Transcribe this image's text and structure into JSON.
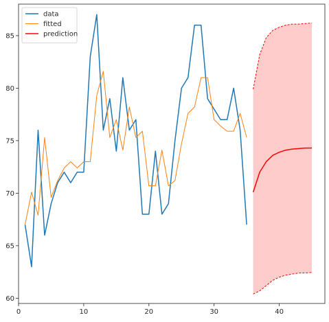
{
  "chart_data": {
    "type": "line",
    "xlim": [
      0,
      47
    ],
    "ylim": [
      59.5,
      88
    ],
    "xticks": [
      0,
      10,
      20,
      30,
      40
    ],
    "yticks": [
      60,
      65,
      70,
      75,
      80,
      85
    ],
    "grid": false,
    "legend_position": "top-left",
    "series": [
      {
        "name": "data",
        "color": "#1f77b4",
        "x": [
          1,
          2,
          3,
          4,
          5,
          6,
          7,
          8,
          9,
          10,
          11,
          12,
          13,
          14,
          15,
          16,
          17,
          18,
          19,
          20,
          21,
          22,
          23,
          24,
          25,
          26,
          27,
          28,
          29,
          30,
          31,
          32,
          33,
          34,
          35
        ],
        "y": [
          67,
          63,
          76,
          66,
          69,
          71,
          72,
          71,
          72,
          72,
          83,
          87,
          76,
          79,
          74,
          81,
          76,
          77,
          68,
          68,
          74,
          68,
          69,
          75,
          80,
          81,
          86,
          86,
          79,
          78,
          77,
          77,
          80,
          76,
          67
        ]
      },
      {
        "name": "fitted",
        "color": "#ff7f0e",
        "x": [
          1,
          2,
          3,
          4,
          5,
          6,
          7,
          8,
          9,
          10,
          11,
          12,
          13,
          14,
          15,
          16,
          17,
          18,
          19,
          20,
          21,
          22,
          23,
          24,
          25,
          26,
          27,
          28,
          29,
          30,
          31,
          32,
          33,
          34,
          35
        ],
        "y": [
          67,
          70.1,
          67.9,
          75.3,
          69.6,
          71.2,
          72.4,
          73,
          72.4,
          73,
          73,
          79.3,
          81.6,
          75.3,
          77,
          74.1,
          78.2,
          75.3,
          75.9,
          70.7,
          70.7,
          74.1,
          70.7,
          71.2,
          74.7,
          77.6,
          78.2,
          81,
          81,
          77,
          76.4,
          75.9,
          75.9,
          77.6,
          75.3
        ]
      },
      {
        "name": "prediction",
        "color": "#ff0000",
        "x": [
          36,
          37,
          38,
          39,
          40,
          41,
          42,
          43,
          44,
          45
        ],
        "y": [
          70.1,
          72,
          73,
          73.6,
          73.9,
          74.1,
          74.2,
          74.25,
          74.3,
          74.3
        ],
        "lower": [
          60.4,
          60.7,
          61.2,
          61.7,
          62,
          62.2,
          62.3,
          62.4,
          62.4,
          62.45
        ],
        "upper": [
          79.9,
          83.2,
          84.8,
          85.5,
          85.8,
          86,
          86.1,
          86.1,
          86.15,
          86.2
        ]
      }
    ]
  }
}
